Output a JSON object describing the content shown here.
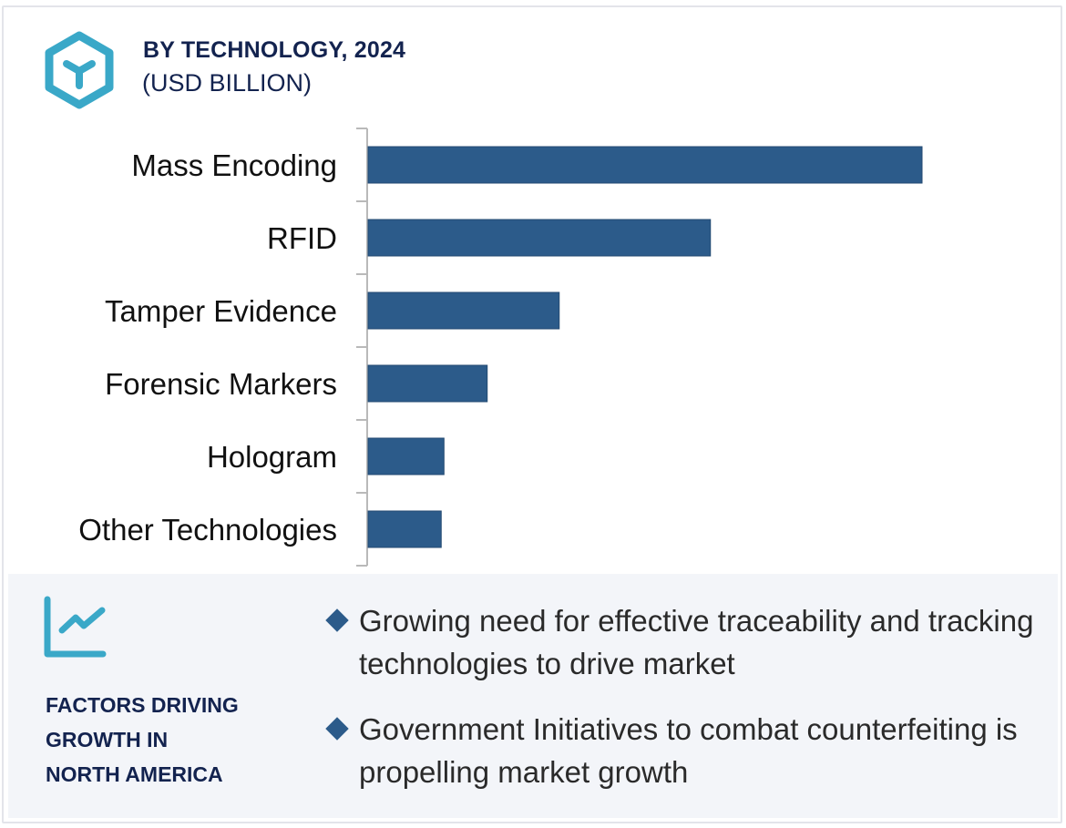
{
  "header": {
    "title": "BY TECHNOLOGY, 2024",
    "subtitle": "(USD BILLION)",
    "icon": "hexagon-y-icon"
  },
  "colors": {
    "bar": "#2c5b8a",
    "accent_icon": "#3aa8c8",
    "title_text": "#13234f",
    "panel_bg": "#f3f5f9",
    "axis": "#b9b9b9"
  },
  "chart_data": {
    "type": "bar",
    "orientation": "horizontal",
    "title": "BY TECHNOLOGY, 2024",
    "subtitle": "(USD BILLION)",
    "xlabel": "",
    "ylabel": "",
    "value_axis_shown": false,
    "value_note": "Relative magnitudes normalized to largest bar = 100 (no value axis shown)",
    "categories": [
      "Mass Encoding",
      "RFID",
      "Tamper Evidence",
      "Forensic Markers",
      "Hologram",
      "Other Technologies"
    ],
    "values": [
      100,
      61.8,
      34.5,
      21.5,
      13.7,
      13.2
    ],
    "xlim": [
      0,
      100
    ],
    "grid": false,
    "legend": "none"
  },
  "factors": {
    "icon": "trend-chart-icon",
    "heading_lines": [
      "FACTORS DRIVING",
      "GROWTH IN",
      "NORTH AMERICA"
    ],
    "bullets": [
      "Growing need for effective traceability and tracking technologies to drive market",
      "Government Initiatives to combat counterfeiting is propelling market growth"
    ]
  }
}
